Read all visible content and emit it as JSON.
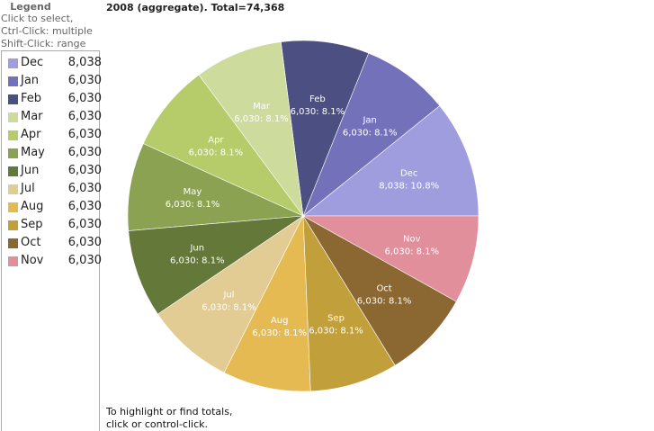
{
  "legend": {
    "title": "Legend",
    "help": [
      "Click to select,",
      "Ctrl-Click: multiple",
      "Shift-Click: range"
    ]
  },
  "note": [
    "To highlight or find totals,",
    "click or control-click."
  ],
  "chart_data": {
    "type": "pie",
    "title": "2008 (aggregate). Total=74,368",
    "total": 74368,
    "slices": [
      {
        "label": "Dec",
        "value": 8038,
        "value_text": "8,038",
        "percent_text": "10.8%",
        "color": "#a09ddf"
      },
      {
        "label": "Jan",
        "value": 6030,
        "value_text": "6,030",
        "percent_text": "8.1%",
        "color": "#7371b9"
      },
      {
        "label": "Feb",
        "value": 6030,
        "value_text": "6,030",
        "percent_text": "8.1%",
        "color": "#4b4f81"
      },
      {
        "label": "Mar",
        "value": 6030,
        "value_text": "6,030",
        "percent_text": "8.1%",
        "color": "#cddb9d"
      },
      {
        "label": "Apr",
        "value": 6030,
        "value_text": "6,030",
        "percent_text": "8.1%",
        "color": "#b6cc6a"
      },
      {
        "label": "May",
        "value": 6030,
        "value_text": "6,030",
        "percent_text": "8.1%",
        "color": "#8ca253"
      },
      {
        "label": "Jun",
        "value": 6030,
        "value_text": "6,030",
        "percent_text": "8.1%",
        "color": "#637839"
      },
      {
        "label": "Jul",
        "value": 6030,
        "value_text": "6,030",
        "percent_text": "8.1%",
        "color": "#e2cc93"
      },
      {
        "label": "Aug",
        "value": 6030,
        "value_text": "6,030",
        "percent_text": "8.1%",
        "color": "#e5ba53"
      },
      {
        "label": "Sep",
        "value": 6030,
        "value_text": "6,030",
        "percent_text": "8.1%",
        "color": "#c19f3a"
      },
      {
        "label": "Oct",
        "value": 6030,
        "value_text": "6,030",
        "percent_text": "8.1%",
        "color": "#8b6731"
      },
      {
        "label": "Nov",
        "value": 6030,
        "value_text": "6,030",
        "percent_text": "8.1%",
        "color": "#e08f9b"
      }
    ]
  }
}
